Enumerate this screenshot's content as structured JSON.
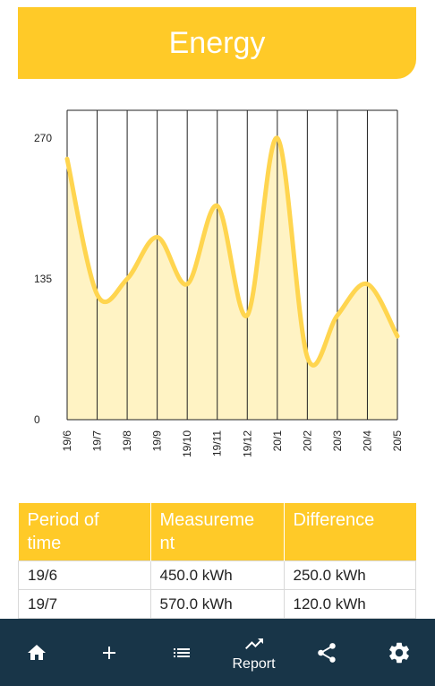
{
  "header": {
    "title": "Energy"
  },
  "chart_data": {
    "type": "area",
    "categories": [
      "19/6",
      "19/7",
      "19/8",
      "19/9",
      "19/10",
      "19/11",
      "19/12",
      "20/1",
      "20/2",
      "20/3",
      "20/4",
      "20/5"
    ],
    "series": [
      {
        "values": [
          250,
          120,
          135,
          175,
          130,
          205,
          100,
          270,
          60,
          100,
          130,
          80
        ]
      }
    ],
    "ylim": [
      0,
      270
    ],
    "yticks": [
      0,
      135,
      270
    ],
    "line_color": "#FFD54F",
    "fill_color": "#FFF3C4",
    "grid": true,
    "title": "",
    "xlabel": "",
    "ylabel": ""
  },
  "table": {
    "headers": [
      "Period of time",
      "Measurement",
      "Difference"
    ],
    "header_display": [
      [
        "Period of",
        "time"
      ],
      [
        "Measureme",
        "nt"
      ],
      [
        "Difference"
      ]
    ],
    "rows": [
      [
        "19/6",
        "450.0 kWh",
        "250.0 kWh"
      ],
      [
        "19/7",
        "570.0 kWh",
        "120.0 kWh"
      ]
    ]
  },
  "nav": {
    "active_color": "#ffffff",
    "items": [
      {
        "icon": "home-icon"
      },
      {
        "icon": "plus-icon"
      },
      {
        "icon": "list-icon"
      },
      {
        "icon": "trending-up-icon",
        "label": "Report"
      },
      {
        "icon": "share-icon"
      },
      {
        "icon": "gear-icon"
      }
    ]
  }
}
